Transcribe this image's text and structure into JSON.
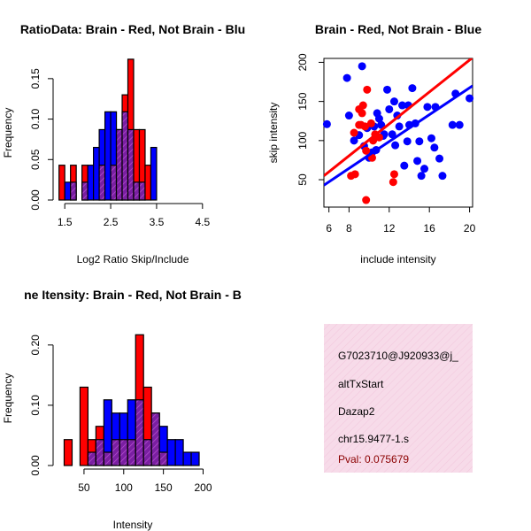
{
  "colors": {
    "red": "#ff0000",
    "blue": "#0000ff",
    "overlap": "#7a1fa2",
    "text": "#000000",
    "pval": "#8b0000",
    "info_bg": "#f7dbe9"
  },
  "chart_data": [
    {
      "id": "ratio_hist",
      "type": "bar",
      "title": "RatioData: Brain - Red, Not Brain - Blu",
      "xlabel": "Log2 Ratio Skip/Include",
      "ylabel": "Frequency",
      "xlim": [
        1.4,
        4.6
      ],
      "ylim": [
        0,
        0.175
      ],
      "xticks": [
        "1.5",
        "2.5",
        "3.5",
        "4.5"
      ],
      "yticks": [
        "0.00",
        "0.05",
        "0.10",
        "0.15"
      ],
      "bin_start": 1.375,
      "bin_width": 0.125,
      "series": [
        {
          "name": "Brain",
          "color": "red",
          "values": [
            0.043,
            0,
            0.043,
            0,
            0.043,
            0,
            0,
            0.043,
            0,
            0.043,
            0.087,
            0.13,
            0.174,
            0.087,
            0.087,
            0.043,
            0
          ]
        },
        {
          "name": "Not Brain",
          "color": "blue",
          "values": [
            0,
            0.022,
            0.022,
            0,
            0.022,
            0.043,
            0.065,
            0.087,
            0.109,
            0.109,
            0.087,
            0.109,
            0.087,
            0.022,
            0.022,
            0,
            0.065
          ]
        }
      ]
    },
    {
      "id": "scatter",
      "type": "scatter",
      "title": "Brain - Red, Not Brain - Blue",
      "xlabel": "include intensity",
      "ylabel": "skip intensity",
      "xlim": [
        5.5,
        20.3
      ],
      "ylim": [
        15,
        205
      ],
      "xticks": [
        6,
        8,
        12,
        16,
        20
      ],
      "yticks": [
        50,
        100,
        150,
        200
      ],
      "series": [
        {
          "name": "Brain",
          "color": "red",
          "points": [
            [
              8.2,
              55
            ],
            [
              9.7,
              87
            ],
            [
              8.6,
              57
            ],
            [
              8.5,
              110
            ],
            [
              9.4,
              145
            ],
            [
              9.0,
              140
            ],
            [
              9.3,
              135
            ],
            [
              9.8,
              165
            ],
            [
              9.0,
              120
            ],
            [
              10.2,
              122
            ],
            [
              10.6,
              108
            ],
            [
              10.3,
              78
            ],
            [
              11.0,
              104
            ],
            [
              12.5,
              57
            ],
            [
              12.4,
              47
            ],
            [
              9.7,
              24
            ],
            [
              9.2,
              120
            ],
            [
              9.6,
              118
            ],
            [
              10.4,
              100
            ]
          ],
          "fit": [
            [
              5.5,
              55
            ],
            [
              20.3,
              206
            ]
          ]
        },
        {
          "name": "Not Brain",
          "color": "blue",
          "points": [
            [
              5.8,
              121
            ],
            [
              7.8,
              180
            ],
            [
              9.3,
              195
            ],
            [
              8.0,
              132
            ],
            [
              8.5,
              100
            ],
            [
              9.0,
              107
            ],
            [
              9.5,
              93
            ],
            [
              10.0,
              78
            ],
            [
              10.3,
              85
            ],
            [
              10.7,
              88
            ],
            [
              10.5,
              118
            ],
            [
              11.0,
              128
            ],
            [
              11.2,
              120
            ],
            [
              11.5,
              108
            ],
            [
              11.8,
              165
            ],
            [
              12.0,
              140
            ],
            [
              12.3,
              108
            ],
            [
              12.5,
              150
            ],
            [
              12.8,
              132
            ],
            [
              13.0,
              118
            ],
            [
              13.3,
              145
            ],
            [
              13.5,
              68
            ],
            [
              13.8,
              99
            ],
            [
              14.0,
              120
            ],
            [
              14.3,
              167
            ],
            [
              14.8,
              74
            ],
            [
              15.0,
              99
            ],
            [
              15.2,
              55
            ],
            [
              15.5,
              64
            ],
            [
              15.8,
              143
            ],
            [
              16.2,
              103
            ],
            [
              16.5,
              91
            ],
            [
              17.0,
              77
            ],
            [
              17.3,
              55
            ],
            [
              18.3,
              120
            ],
            [
              18.6,
              160
            ],
            [
              19.0,
              120
            ],
            [
              20.0,
              154
            ],
            [
              10.8,
              135
            ],
            [
              12.6,
              94
            ],
            [
              11.4,
              106
            ],
            [
              13.9,
              145
            ],
            [
              9.8,
              116
            ],
            [
              14.6,
              122
            ],
            [
              16.6,
              143
            ]
          ],
          "fit": [
            [
              5.5,
              43
            ],
            [
              20.3,
              170
            ]
          ]
        }
      ]
    },
    {
      "id": "intensity_hist",
      "type": "bar",
      "title": "ne Itensity: Brain - Red, Not Brain - B",
      "xlabel": "Intensity",
      "ylabel": "Frequency",
      "xlim": [
        20,
        205
      ],
      "ylim": [
        0,
        0.235
      ],
      "xticks": [
        "50",
        "100",
        "150",
        "200"
      ],
      "yticks": [
        "0.00",
        "0.10",
        "0.20"
      ],
      "bin_start": 25,
      "bin_width": 10,
      "series": [
        {
          "name": "Brain",
          "color": "red",
          "values": [
            0.043,
            0,
            0.13,
            0.043,
            0.065,
            0.022,
            0.043,
            0.043,
            0.043,
            0.217,
            0.13,
            0.087,
            0.022,
            0,
            0,
            0,
            0
          ]
        },
        {
          "name": "Not Brain",
          "color": "blue",
          "values": [
            0,
            0,
            0,
            0.022,
            0.043,
            0.109,
            0.087,
            0.087,
            0.109,
            0.109,
            0.043,
            0.087,
            0.065,
            0.043,
            0.043,
            0.022,
            0.022
          ]
        }
      ]
    }
  ],
  "info": {
    "id_text": "G7023710@J920933@j_",
    "event": "altTxStart",
    "gene": "Dazap2",
    "locus": "chr15.9477-1.s",
    "pval": "Pval: 0.075679"
  }
}
